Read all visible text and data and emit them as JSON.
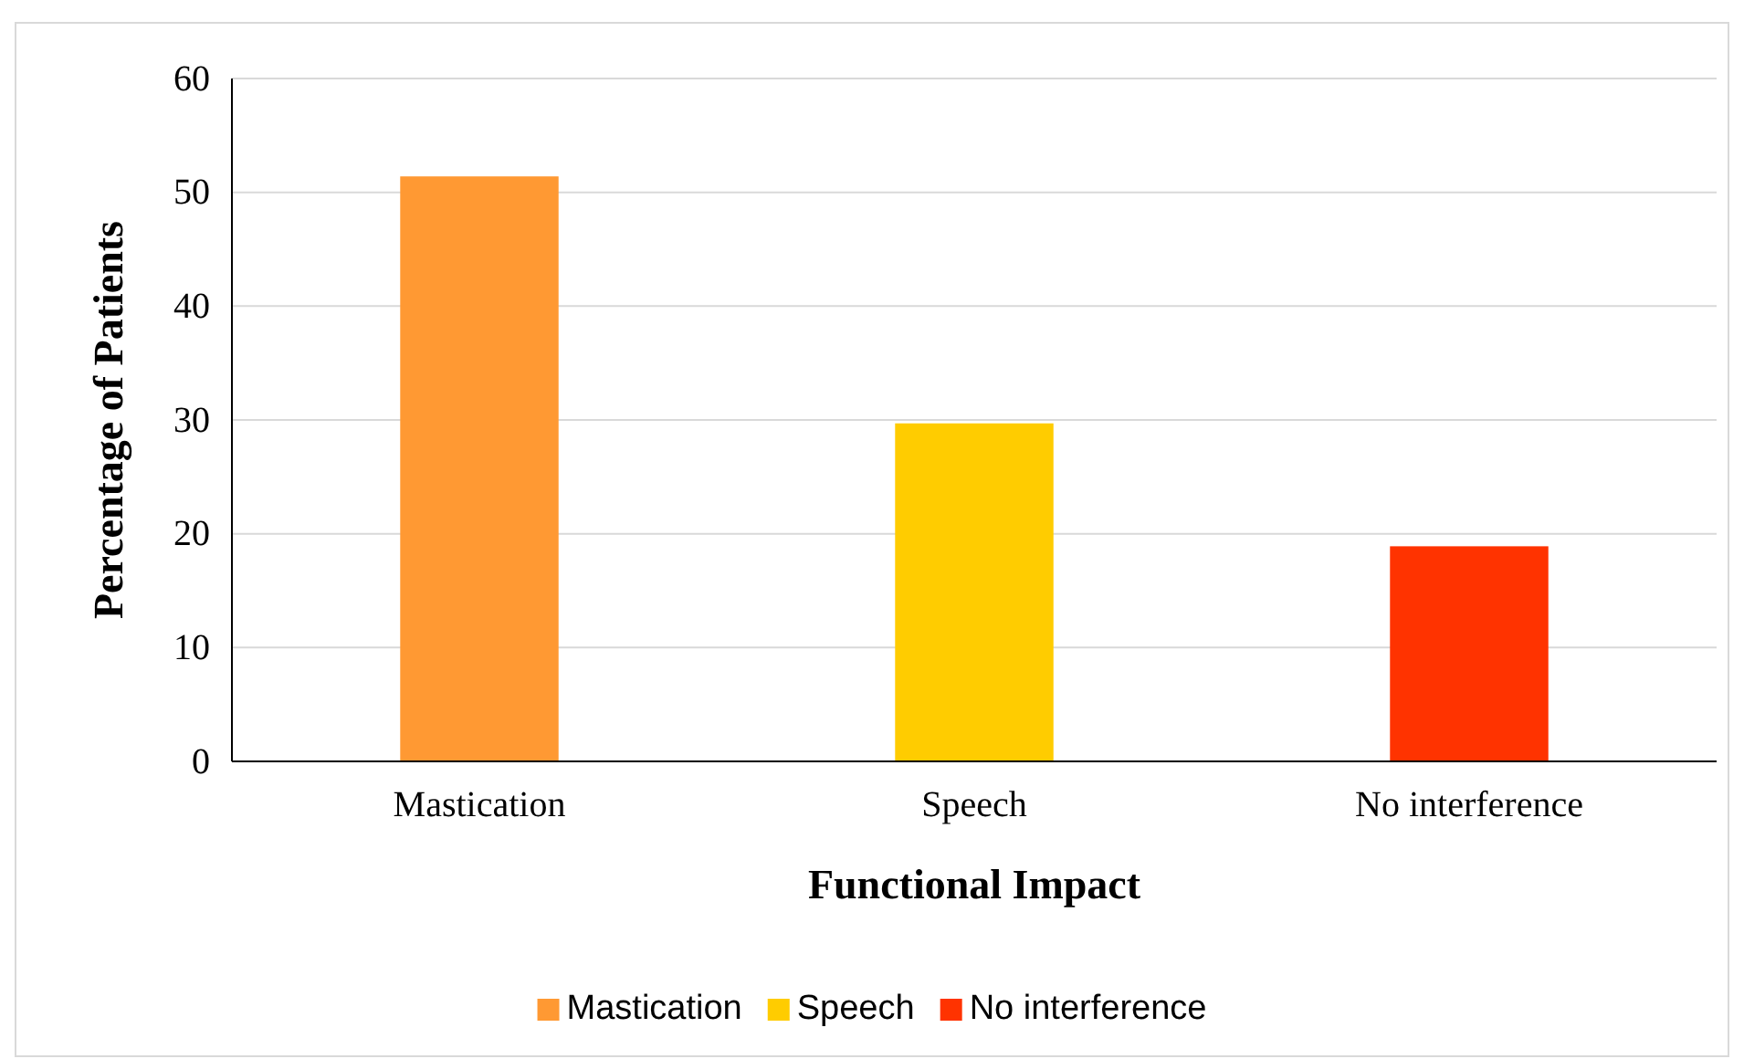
{
  "chart_data": {
    "type": "bar",
    "xlabel": "Functional Impact",
    "ylabel": "Percentage of Patients",
    "categories": [
      "Mastication",
      "Speech",
      "No interference"
    ],
    "series": [
      {
        "name": "Mastication",
        "color": "#ff9933",
        "values": [
          51.4,
          null,
          null
        ]
      },
      {
        "name": "Speech",
        "color": "#ffcc00",
        "values": [
          null,
          29.7,
          null
        ]
      },
      {
        "name": "No interference",
        "color": "#ff3300",
        "values": [
          null,
          null,
          18.9
        ]
      }
    ],
    "ylim": [
      0,
      60
    ],
    "yticks": [
      0,
      10,
      20,
      30,
      40,
      50,
      60
    ],
    "grid": "y",
    "legend": "bottom"
  }
}
